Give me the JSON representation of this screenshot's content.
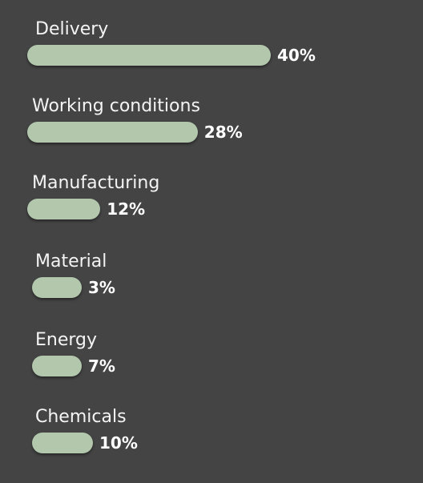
{
  "chart_data": {
    "type": "bar",
    "orientation": "horizontal",
    "categories": [
      "Delivery",
      "Working conditions",
      "Manufacturing",
      "Material",
      "Energy",
      "Chemicals"
    ],
    "values": [
      40,
      28,
      12,
      3,
      7,
      10
    ],
    "value_labels": [
      "40%",
      "28%",
      "12%",
      "3%",
      "7%",
      "10%"
    ],
    "bar_color": "#b3c7ad",
    "background_color": "#444444",
    "text_color": "#f4f4f4",
    "grid": false,
    "legend": "none"
  }
}
